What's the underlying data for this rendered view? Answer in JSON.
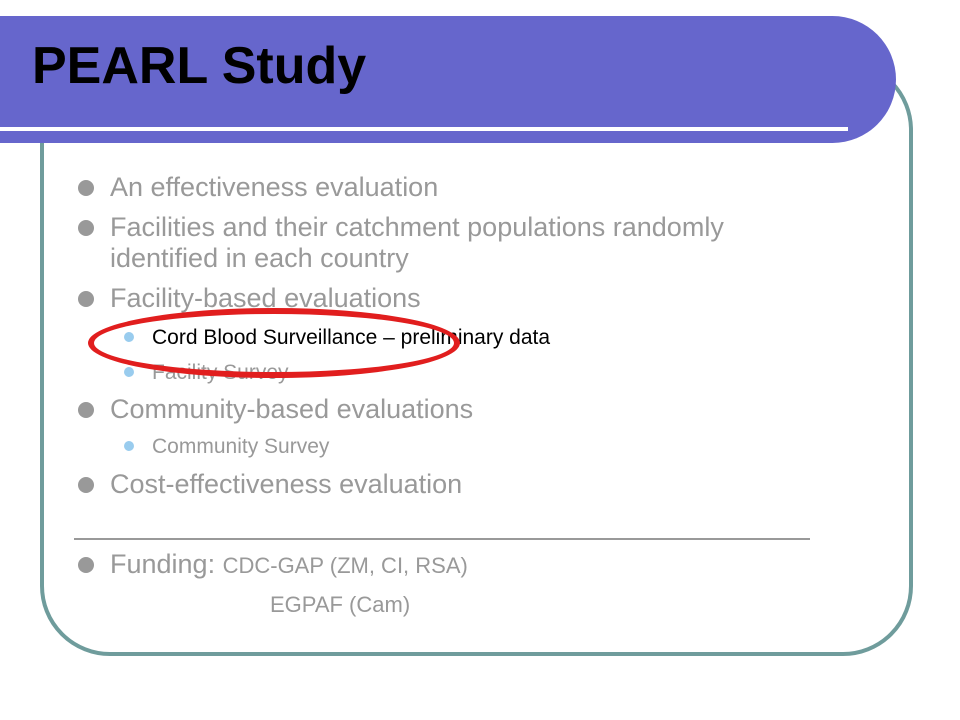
{
  "slide": {
    "title": "PEARL Study",
    "bullets": [
      {
        "text": "An effectiveness evaluation"
      },
      {
        "text_line1": "Facilities and their catchment populations randomly",
        "text_line2": "identified in each country"
      },
      {
        "text": "Facility-based evaluations",
        "sub": [
          {
            "label": "Cord Blood Surveillance",
            "suffix": " – preliminary data"
          },
          {
            "text": "Facility Survey"
          }
        ]
      },
      {
        "text": "Community-based evaluations",
        "sub": [
          {
            "text": "Community Survey"
          }
        ]
      },
      {
        "text": "Cost-effectiveness evaluation"
      }
    ],
    "funding": {
      "label": "Funding: ",
      "line1": "CDC-GAP (ZM, CI, RSA)",
      "line2": "EGPAF (Cam)"
    }
  },
  "colors": {
    "title_band": "#6666cc",
    "frame_border": "#6f9c9c",
    "body_text": "#999999",
    "highlight_text": "#000000",
    "callout_ellipse": "#e11e1e",
    "sub_bullet": "#99ccee"
  }
}
